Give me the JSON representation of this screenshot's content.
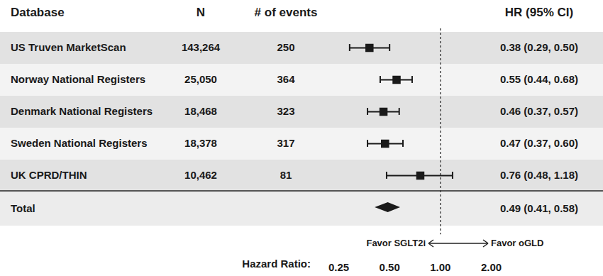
{
  "chart_data": {
    "type": "forest",
    "columns": {
      "database": "Database",
      "n": "N",
      "events": "# of events",
      "hr": "HR (95% CI)"
    },
    "categories": [
      "US Truven MarketScan",
      "Norway National Registers",
      "Denmark National Registers",
      "Sweden National Registers",
      "UK CPRD/THIN"
    ],
    "n": [
      "143,264",
      "25,050",
      "18,468",
      "18,378",
      "10,462"
    ],
    "events": [
      250,
      364,
      323,
      317,
      81
    ],
    "values": [
      0.38,
      0.55,
      0.46,
      0.47,
      0.76
    ],
    "ci_low": [
      0.29,
      0.44,
      0.37,
      0.37,
      0.48
    ],
    "ci_high": [
      0.5,
      0.68,
      0.57,
      0.6,
      1.18
    ],
    "value_labels": [
      "0.38 (0.29, 0.50)",
      "0.55 (0.44, 0.68)",
      "0.46 (0.37, 0.57)",
      "0.47 (0.37, 0.60)",
      "0.76 (0.48, 1.18)"
    ],
    "total": {
      "label": "Total",
      "value": 0.49,
      "ci_low": 0.41,
      "ci_high": 0.58,
      "value_label": "0.49 (0.41, 0.58)"
    },
    "xlabel": "Hazard Ratio:",
    "log": "x",
    "xlim": [
      0.25,
      2
    ],
    "xticks": [
      {
        "value": 0.25,
        "label": "0.25"
      },
      {
        "value": 0.5,
        "label": "0.50"
      },
      {
        "value": 1,
        "label": "1.00"
      },
      {
        "value": 2,
        "label": "2.00"
      }
    ],
    "reference_line": 1,
    "annotations": {
      "left": "Favor SGLT2i",
      "right": "Favor oGLD"
    },
    "color": "#1a1a1a"
  }
}
